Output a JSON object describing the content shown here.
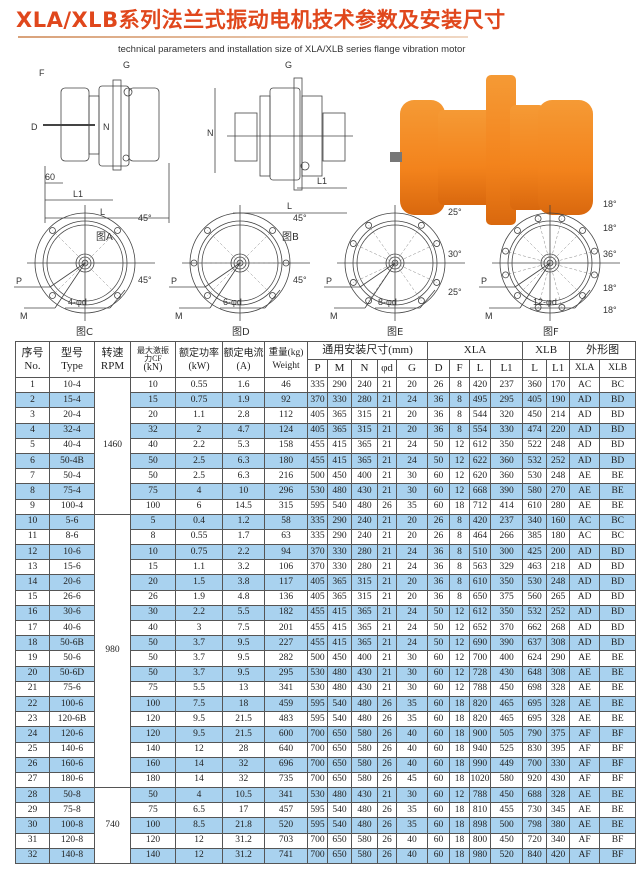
{
  "title": "XLA/XLB系列法兰式振动电机技术参数及安装尺寸",
  "subtitle": "technical parameters and installation size of XLA/XLB series flange vibration motor",
  "figures": {
    "A": {
      "caption": "图A",
      "labels": {
        "F": "F",
        "D": "D",
        "G": "G",
        "N": "N",
        "d60": "60",
        "L1": "L1",
        "L": "L"
      }
    },
    "B": {
      "caption": "图B",
      "labels": {
        "G": "G",
        "N": "N",
        "L1": "L1",
        "L": "L"
      }
    },
    "C": {
      "caption": "图C",
      "holes": 4,
      "holes_label": "4-φd",
      "P": "P",
      "M": "M",
      "angles": [
        "45°",
        "45°"
      ]
    },
    "D": {
      "caption": "图D",
      "holes": 6,
      "holes_label": "6-φd",
      "P": "P",
      "M": "M",
      "angles": [
        "45°",
        "45°"
      ]
    },
    "E": {
      "caption": "图E",
      "holes": 8,
      "holes_label": "8-φd",
      "P": "P",
      "M": "M",
      "angles": [
        "25°",
        "30°",
        "25°"
      ]
    },
    "F": {
      "caption": "图F",
      "holes": 12,
      "holes_label": "12-φd",
      "P": "P",
      "M": "M",
      "angles": [
        "18°",
        "18°",
        "36°",
        "18°",
        "18°"
      ]
    }
  },
  "colors": {
    "title": "#e0471c",
    "row_alt": "#a9d2ef",
    "motor": "#f3831c"
  },
  "table": {
    "header": {
      "no": [
        "序号",
        "No."
      ],
      "type": [
        "型号",
        "Type"
      ],
      "rpm": [
        "转速",
        "RPM"
      ],
      "cf": [
        "最大激振力CF",
        "(kN)"
      ],
      "kw": [
        "额定功率",
        "(kW)"
      ],
      "amp": [
        "额定电流",
        "(A)"
      ],
      "weight": [
        "重量(kg)",
        "Weight"
      ],
      "common": "通用安装尺寸(mm)",
      "xla": "XLA",
      "xlb": "XLB",
      "shape": "外形图",
      "sub": [
        "P",
        "M",
        "N",
        "φd",
        "G",
        "D",
        "F",
        "L",
        "L1",
        "L",
        "L1",
        "XLA",
        "XLB"
      ]
    },
    "rpm_groups": [
      {
        "rpm": "1460",
        "rows": 9
      },
      {
        "rpm": "980",
        "rows": 18
      },
      {
        "rpm": "740",
        "rows": 5
      }
    ],
    "rows": [
      [
        "1",
        "10-4",
        "10",
        "0.55",
        "1.6",
        "46",
        "335",
        "290",
        "240",
        "21",
        "20",
        "26",
        "8",
        "420",
        "237",
        "360",
        "170",
        "AC",
        "BC"
      ],
      [
        "2",
        "15-4",
        "15",
        "0.75",
        "1.9",
        "92",
        "370",
        "330",
        "280",
        "21",
        "24",
        "36",
        "8",
        "495",
        "295",
        "405",
        "190",
        "AD",
        "BD"
      ],
      [
        "3",
        "20-4",
        "20",
        "1.1",
        "2.8",
        "112",
        "405",
        "365",
        "315",
        "21",
        "20",
        "36",
        "8",
        "544",
        "320",
        "450",
        "214",
        "AD",
        "BD"
      ],
      [
        "4",
        "32-4",
        "32",
        "2",
        "4.7",
        "124",
        "405",
        "365",
        "315",
        "21",
        "20",
        "36",
        "8",
        "554",
        "330",
        "474",
        "220",
        "AD",
        "BD"
      ],
      [
        "5",
        "40-4",
        "40",
        "2.2",
        "5.3",
        "158",
        "455",
        "415",
        "365",
        "21",
        "24",
        "50",
        "12",
        "612",
        "350",
        "522",
        "248",
        "AD",
        "BD"
      ],
      [
        "6",
        "50-4B",
        "50",
        "2.5",
        "6.3",
        "180",
        "455",
        "415",
        "365",
        "21",
        "24",
        "50",
        "12",
        "622",
        "360",
        "532",
        "252",
        "AD",
        "BD"
      ],
      [
        "7",
        "50-4",
        "50",
        "2.5",
        "6.3",
        "216",
        "500",
        "450",
        "400",
        "21",
        "30",
        "60",
        "12",
        "620",
        "360",
        "530",
        "248",
        "AE",
        "BE"
      ],
      [
        "8",
        "75-4",
        "75",
        "4",
        "10",
        "296",
        "530",
        "480",
        "430",
        "21",
        "30",
        "60",
        "12",
        "668",
        "390",
        "580",
        "270",
        "AE",
        "BE"
      ],
      [
        "9",
        "100-4",
        "100",
        "6",
        "14.5",
        "315",
        "595",
        "540",
        "480",
        "26",
        "35",
        "60",
        "18",
        "712",
        "414",
        "610",
        "280",
        "AE",
        "BE"
      ],
      [
        "10",
        "5-6",
        "5",
        "0.4",
        "1.2",
        "58",
        "335",
        "290",
        "240",
        "21",
        "20",
        "26",
        "8",
        "420",
        "237",
        "340",
        "160",
        "AC",
        "BC"
      ],
      [
        "11",
        "8-6",
        "8",
        "0.55",
        "1.7",
        "63",
        "335",
        "290",
        "240",
        "21",
        "20",
        "26",
        "8",
        "464",
        "266",
        "385",
        "180",
        "AC",
        "BC"
      ],
      [
        "12",
        "10-6",
        "10",
        "0.75",
        "2.2",
        "94",
        "370",
        "330",
        "280",
        "21",
        "24",
        "36",
        "8",
        "510",
        "300",
        "425",
        "200",
        "AD",
        "BD"
      ],
      [
        "13",
        "15-6",
        "15",
        "1.1",
        "3.2",
        "106",
        "370",
        "330",
        "280",
        "21",
        "24",
        "36",
        "8",
        "563",
        "329",
        "463",
        "218",
        "AD",
        "BD"
      ],
      [
        "14",
        "20-6",
        "20",
        "1.5",
        "3.8",
        "117",
        "405",
        "365",
        "315",
        "21",
        "20",
        "36",
        "8",
        "610",
        "350",
        "530",
        "248",
        "AD",
        "BD"
      ],
      [
        "15",
        "26-6",
        "26",
        "1.9",
        "4.8",
        "136",
        "405",
        "365",
        "315",
        "21",
        "20",
        "36",
        "8",
        "650",
        "375",
        "560",
        "265",
        "AD",
        "BD"
      ],
      [
        "16",
        "30-6",
        "30",
        "2.2",
        "5.5",
        "182",
        "455",
        "415",
        "365",
        "21",
        "24",
        "50",
        "12",
        "612",
        "350",
        "532",
        "252",
        "AD",
        "BD"
      ],
      [
        "17",
        "40-6",
        "40",
        "3",
        "7.5",
        "201",
        "455",
        "415",
        "365",
        "21",
        "24",
        "50",
        "12",
        "652",
        "370",
        "662",
        "268",
        "AD",
        "BD"
      ],
      [
        "18",
        "50-6B",
        "50",
        "3.7",
        "9.5",
        "227",
        "455",
        "415",
        "365",
        "21",
        "24",
        "50",
        "12",
        "690",
        "390",
        "637",
        "308",
        "AD",
        "BD"
      ],
      [
        "19",
        "50-6",
        "50",
        "3.7",
        "9.5",
        "282",
        "500",
        "450",
        "400",
        "21",
        "30",
        "60",
        "12",
        "700",
        "400",
        "624",
        "290",
        "AE",
        "BE"
      ],
      [
        "20",
        "50-6D",
        "50",
        "3.7",
        "9.5",
        "295",
        "530",
        "480",
        "430",
        "21",
        "30",
        "60",
        "12",
        "728",
        "430",
        "648",
        "308",
        "AE",
        "BE"
      ],
      [
        "21",
        "75-6",
        "75",
        "5.5",
        "13",
        "341",
        "530",
        "480",
        "430",
        "21",
        "30",
        "60",
        "12",
        "788",
        "450",
        "698",
        "328",
        "AE",
        "BE"
      ],
      [
        "22",
        "100-6",
        "100",
        "7.5",
        "18",
        "459",
        "595",
        "540",
        "480",
        "26",
        "35",
        "60",
        "18",
        "820",
        "465",
        "695",
        "328",
        "AE",
        "BE"
      ],
      [
        "23",
        "120-6B",
        "120",
        "9.5",
        "21.5",
        "483",
        "595",
        "540",
        "480",
        "26",
        "35",
        "60",
        "18",
        "820",
        "465",
        "695",
        "328",
        "AE",
        "BE"
      ],
      [
        "24",
        "120-6",
        "120",
        "9.5",
        "21.5",
        "600",
        "700",
        "650",
        "580",
        "26",
        "40",
        "60",
        "18",
        "900",
        "505",
        "790",
        "375",
        "AF",
        "BF"
      ],
      [
        "25",
        "140-6",
        "140",
        "12",
        "28",
        "640",
        "700",
        "650",
        "580",
        "26",
        "40",
        "60",
        "18",
        "940",
        "525",
        "830",
        "395",
        "AF",
        "BF"
      ],
      [
        "26",
        "160-6",
        "160",
        "14",
        "32",
        "696",
        "700",
        "650",
        "580",
        "26",
        "40",
        "60",
        "18",
        "990",
        "449",
        "700",
        "330",
        "AF",
        "BF"
      ],
      [
        "27",
        "180-6",
        "180",
        "14",
        "32",
        "735",
        "700",
        "650",
        "580",
        "26",
        "45",
        "60",
        "18",
        "1020",
        "580",
        "920",
        "430",
        "AF",
        "BF"
      ],
      [
        "28",
        "50-8",
        "50",
        "4",
        "10.5",
        "341",
        "530",
        "480",
        "430",
        "21",
        "30",
        "60",
        "12",
        "788",
        "450",
        "688",
        "328",
        "AE",
        "BE"
      ],
      [
        "29",
        "75-8",
        "75",
        "6.5",
        "17",
        "457",
        "595",
        "540",
        "480",
        "26",
        "35",
        "60",
        "18",
        "810",
        "455",
        "730",
        "345",
        "AE",
        "BE"
      ],
      [
        "30",
        "100-8",
        "100",
        "8.5",
        "21.8",
        "520",
        "595",
        "540",
        "480",
        "26",
        "35",
        "60",
        "18",
        "898",
        "500",
        "798",
        "380",
        "AE",
        "BE"
      ],
      [
        "31",
        "120-8",
        "120",
        "12",
        "31.2",
        "703",
        "700",
        "650",
        "580",
        "26",
        "40",
        "60",
        "18",
        "800",
        "450",
        "720",
        "340",
        "AF",
        "BF"
      ],
      [
        "32",
        "140-8",
        "140",
        "12",
        "31.2",
        "741",
        "700",
        "650",
        "580",
        "26",
        "40",
        "60",
        "18",
        "980",
        "520",
        "840",
        "420",
        "AF",
        "BF"
      ]
    ]
  }
}
